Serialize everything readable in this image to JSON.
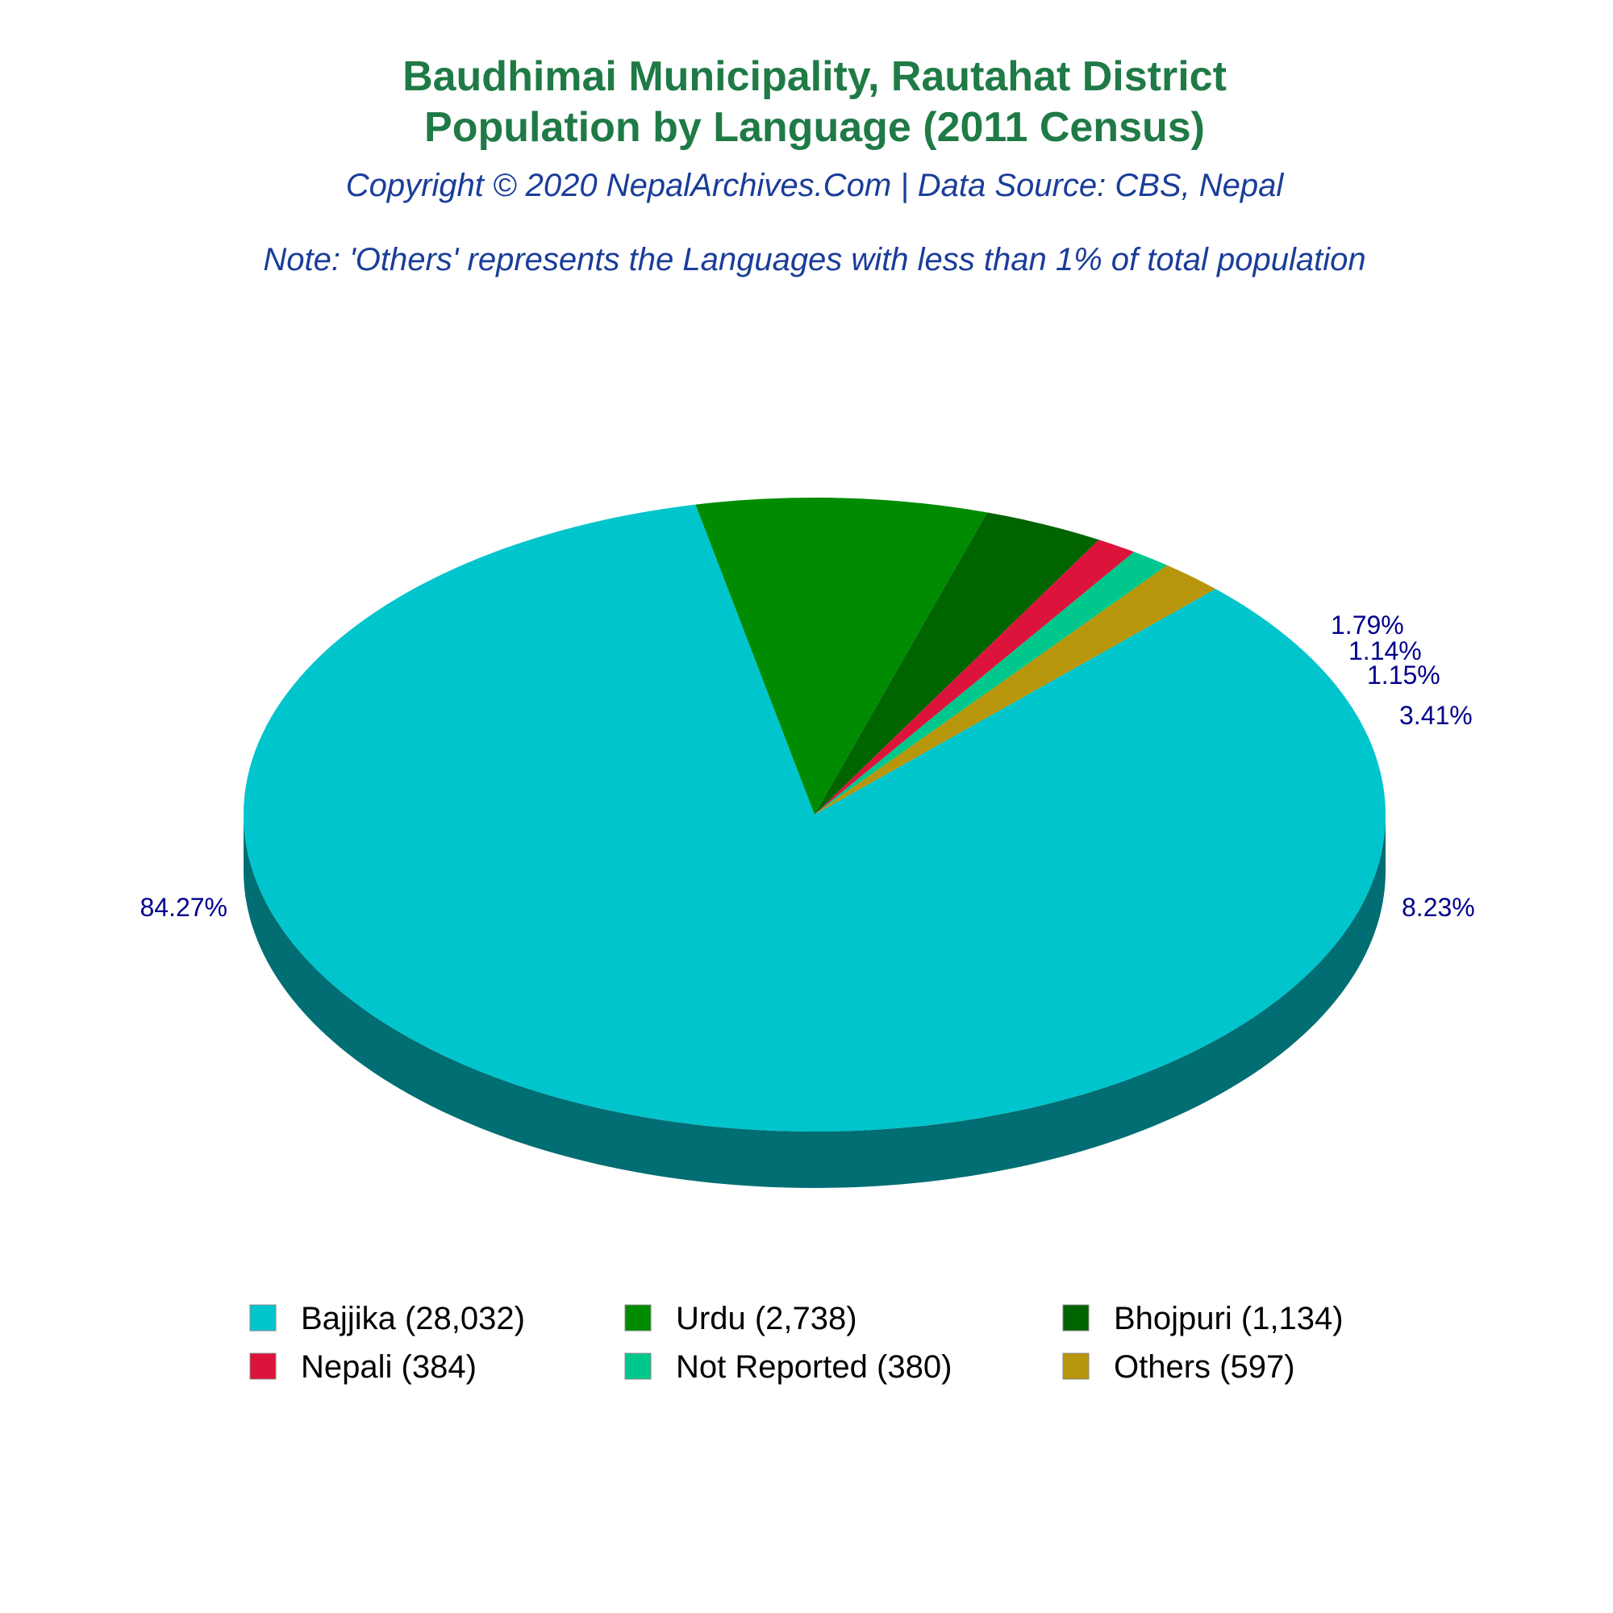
{
  "chart_data": {
    "type": "pie",
    "title_line1": "Baudhimai Municipality, Rautahat District",
    "title_line2": "Population by Language (2011 Census)",
    "copyright": "Copyright © 2020 NepalArchives.Com | Data Source: CBS, Nepal",
    "note": "Note: 'Others' represents the Languages with less than 1% of total population",
    "legend_placement": "bottom",
    "slices": [
      {
        "name": "Bajjika",
        "value": 28032,
        "percent": "84.27%",
        "legend": "Bajjika (28,032)",
        "color": "#00c5cd",
        "side": "#006e73"
      },
      {
        "name": "Urdu",
        "value": 2738,
        "percent": "8.23%",
        "legend": "Urdu (2,738)",
        "color": "#008b00",
        "side": "#004d00"
      },
      {
        "name": "Bhojpuri",
        "value": 1134,
        "percent": "3.41%",
        "legend": "Bhojpuri (1,134)",
        "color": "#006400",
        "side": "#003300"
      },
      {
        "name": "Nepali",
        "value": 384,
        "percent": "1.15%",
        "legend": "Nepali (384)",
        "color": "#dc143c",
        "side": "#7a0b21"
      },
      {
        "name": "Not Reported",
        "value": 380,
        "percent": "1.14%",
        "legend": "Not Reported (380)",
        "color": "#00c78c",
        "side": "#006e4d"
      },
      {
        "name": "Others",
        "value": 597,
        "percent": "1.79%",
        "legend": "Others (597)",
        "color": "#b8960b",
        "side": "#6b5706"
      }
    ]
  }
}
